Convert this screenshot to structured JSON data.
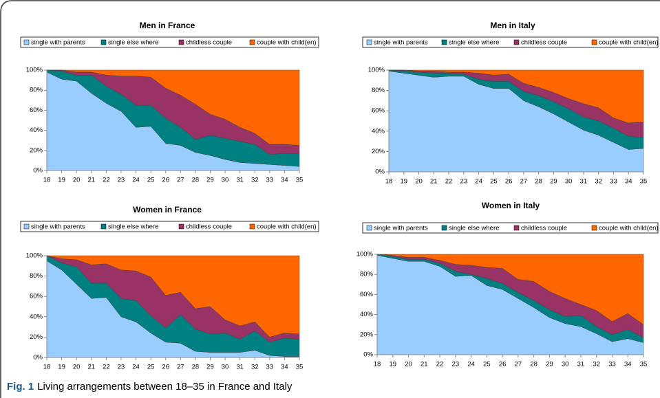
{
  "chart_data": [
    {
      "type": "area",
      "stacked": true,
      "title": "Men in France",
      "x": [
        18,
        19,
        20,
        21,
        22,
        23,
        24,
        25,
        26,
        27,
        28,
        29,
        30,
        31,
        32,
        33,
        34,
        35
      ],
      "xlim": [
        18,
        35
      ],
      "ylim": [
        0,
        100
      ],
      "yticks": [
        {
          "value": 0,
          "label": "0%"
        },
        {
          "value": 20,
          "label": "20%"
        },
        {
          "value": 40,
          "label": "40%"
        },
        {
          "value": 60,
          "label": "60%"
        },
        {
          "value": 80,
          "label": "80%"
        },
        {
          "value": 100,
          "label": "100%"
        }
      ],
      "series": [
        {
          "name": "single with parents",
          "color": "#99ccff",
          "values": [
            98,
            91,
            89,
            77,
            67,
            59,
            43,
            44,
            27,
            25,
            18,
            15,
            11,
            8,
            7,
            6,
            5,
            4
          ]
        },
        {
          "name": "single else where",
          "color": "#008080",
          "values": [
            2,
            8,
            6,
            18,
            17,
            17,
            22,
            21,
            25,
            18,
            13,
            20,
            21,
            21,
            19,
            10,
            12,
            13
          ]
        },
        {
          "name": "childless couple",
          "color": "#993366",
          "values": [
            0,
            1,
            3,
            3,
            11,
            18,
            29,
            28,
            30,
            32,
            35,
            21,
            19,
            14,
            11,
            10,
            9,
            8
          ]
        },
        {
          "name": "couple with child(en)",
          "color": "#ff6600",
          "values": [
            0,
            0,
            2,
            2,
            5,
            6,
            6,
            7,
            18,
            25,
            34,
            44,
            49,
            57,
            63,
            74,
            74,
            75
          ]
        }
      ]
    },
    {
      "type": "area",
      "stacked": true,
      "title": "Men in Italy",
      "x": [
        18,
        19,
        20,
        21,
        22,
        23,
        24,
        25,
        26,
        27,
        28,
        29,
        30,
        31,
        32,
        33,
        34,
        35
      ],
      "xlim": [
        18,
        35
      ],
      "ylim": [
        0,
        100
      ],
      "yticks": [
        {
          "value": 0,
          "label": "0%"
        },
        {
          "value": 20,
          "label": "20%"
        },
        {
          "value": 40,
          "label": "40%"
        },
        {
          "value": 60,
          "label": "60%"
        },
        {
          "value": 80,
          "label": "80%"
        },
        {
          "value": 100,
          "label": "100%"
        }
      ],
      "series": [
        {
          "name": "single with parents",
          "color": "#99ccff",
          "values": [
            99,
            97,
            95,
            93,
            94,
            94,
            86,
            82,
            82,
            70,
            64,
            57,
            49,
            41,
            36,
            29,
            22,
            23
          ]
        },
        {
          "name": "single else where",
          "color": "#008080",
          "values": [
            1,
            2,
            3,
            4,
            3,
            2,
            5,
            7,
            7,
            9,
            11,
            12,
            13,
            13,
            14,
            14,
            13,
            11
          ]
        },
        {
          "name": "childless couple",
          "color": "#993366",
          "values": [
            0,
            1,
            1,
            2,
            1,
            2,
            6,
            6,
            7,
            8,
            8,
            9,
            10,
            13,
            13,
            10,
            13,
            15
          ]
        },
        {
          "name": "couple with child(en)",
          "color": "#ff6600",
          "values": [
            0,
            0,
            1,
            1,
            2,
            2,
            3,
            5,
            4,
            13,
            17,
            22,
            28,
            33,
            37,
            47,
            52,
            51
          ]
        }
      ]
    },
    {
      "type": "area",
      "stacked": true,
      "title": "Women in France",
      "x": [
        18,
        19,
        20,
        21,
        22,
        23,
        24,
        25,
        26,
        27,
        28,
        29,
        30,
        31,
        32,
        33,
        34,
        35
      ],
      "xlim": [
        18,
        35
      ],
      "ylim": [
        0,
        100
      ],
      "yticks": [
        {
          "value": 0,
          "label": "0%"
        },
        {
          "value": 20,
          "label": "20%"
        },
        {
          "value": 40,
          "label": "40%"
        },
        {
          "value": 60,
          "label": "60%"
        },
        {
          "value": 80,
          "label": "80%"
        },
        {
          "value": 100,
          "label": "100%"
        }
      ],
      "series": [
        {
          "name": "single with parents",
          "color": "#99ccff",
          "values": [
            95,
            86,
            72,
            58,
            59,
            40,
            35,
            24,
            15,
            14,
            6,
            5,
            5,
            5,
            7,
            2,
            1,
            1
          ]
        },
        {
          "name": "single else where",
          "color": "#008080",
          "values": [
            5,
            7,
            17,
            15,
            14,
            18,
            21,
            17,
            14,
            28,
            22,
            18,
            19,
            13,
            19,
            13,
            18,
            17
          ]
        },
        {
          "name": "childless couple",
          "color": "#993366",
          "values": [
            0,
            4,
            7,
            18,
            19,
            28,
            29,
            38,
            32,
            22,
            20,
            27,
            13,
            13,
            9,
            5,
            5,
            5
          ]
        },
        {
          "name": "couple with child(en)",
          "color": "#ff6600",
          "values": [
            0,
            3,
            4,
            9,
            8,
            14,
            15,
            21,
            39,
            36,
            52,
            50,
            63,
            69,
            65,
            80,
            76,
            77
          ]
        }
      ]
    },
    {
      "type": "area",
      "stacked": true,
      "title": "Women in Italy",
      "x": [
        18,
        19,
        20,
        21,
        22,
        23,
        24,
        25,
        26,
        27,
        28,
        29,
        30,
        31,
        32,
        33,
        34,
        35
      ],
      "xlim": [
        18,
        35
      ],
      "ylim": [
        0,
        100
      ],
      "yticks": [
        {
          "value": 0,
          "label": "0%"
        },
        {
          "value": 20,
          "label": "20%"
        },
        {
          "value": 40,
          "label": "40%"
        },
        {
          "value": 60,
          "label": "60%"
        },
        {
          "value": 80,
          "label": "80%"
        },
        {
          "value": 100,
          "label": "100%"
        }
      ],
      "series": [
        {
          "name": "single with parents",
          "color": "#99ccff",
          "values": [
            99,
            96,
            93,
            93,
            88,
            78,
            79,
            69,
            65,
            56,
            47,
            37,
            31,
            28,
            21,
            13,
            16,
            12
          ]
        },
        {
          "name": "single else where",
          "color": "#008080",
          "values": [
            1,
            2,
            2,
            2,
            3,
            5,
            1,
            7,
            6,
            6,
            7,
            8,
            7,
            11,
            7,
            7,
            9,
            5
          ]
        },
        {
          "name": "childless couple",
          "color": "#993366",
          "values": [
            0,
            1,
            2,
            2,
            3,
            7,
            9,
            11,
            15,
            13,
            19,
            18,
            18,
            11,
            16,
            13,
            16,
            13
          ]
        },
        {
          "name": "couple with child(en)",
          "color": "#ff6600",
          "values": [
            0,
            1,
            3,
            3,
            6,
            10,
            11,
            13,
            14,
            25,
            27,
            37,
            44,
            50,
            56,
            67,
            59,
            70
          ]
        }
      ]
    }
  ],
  "caption": {
    "label": "Fig. 1",
    "text": "Living arrangements between 18–35 in France and Italy"
  }
}
